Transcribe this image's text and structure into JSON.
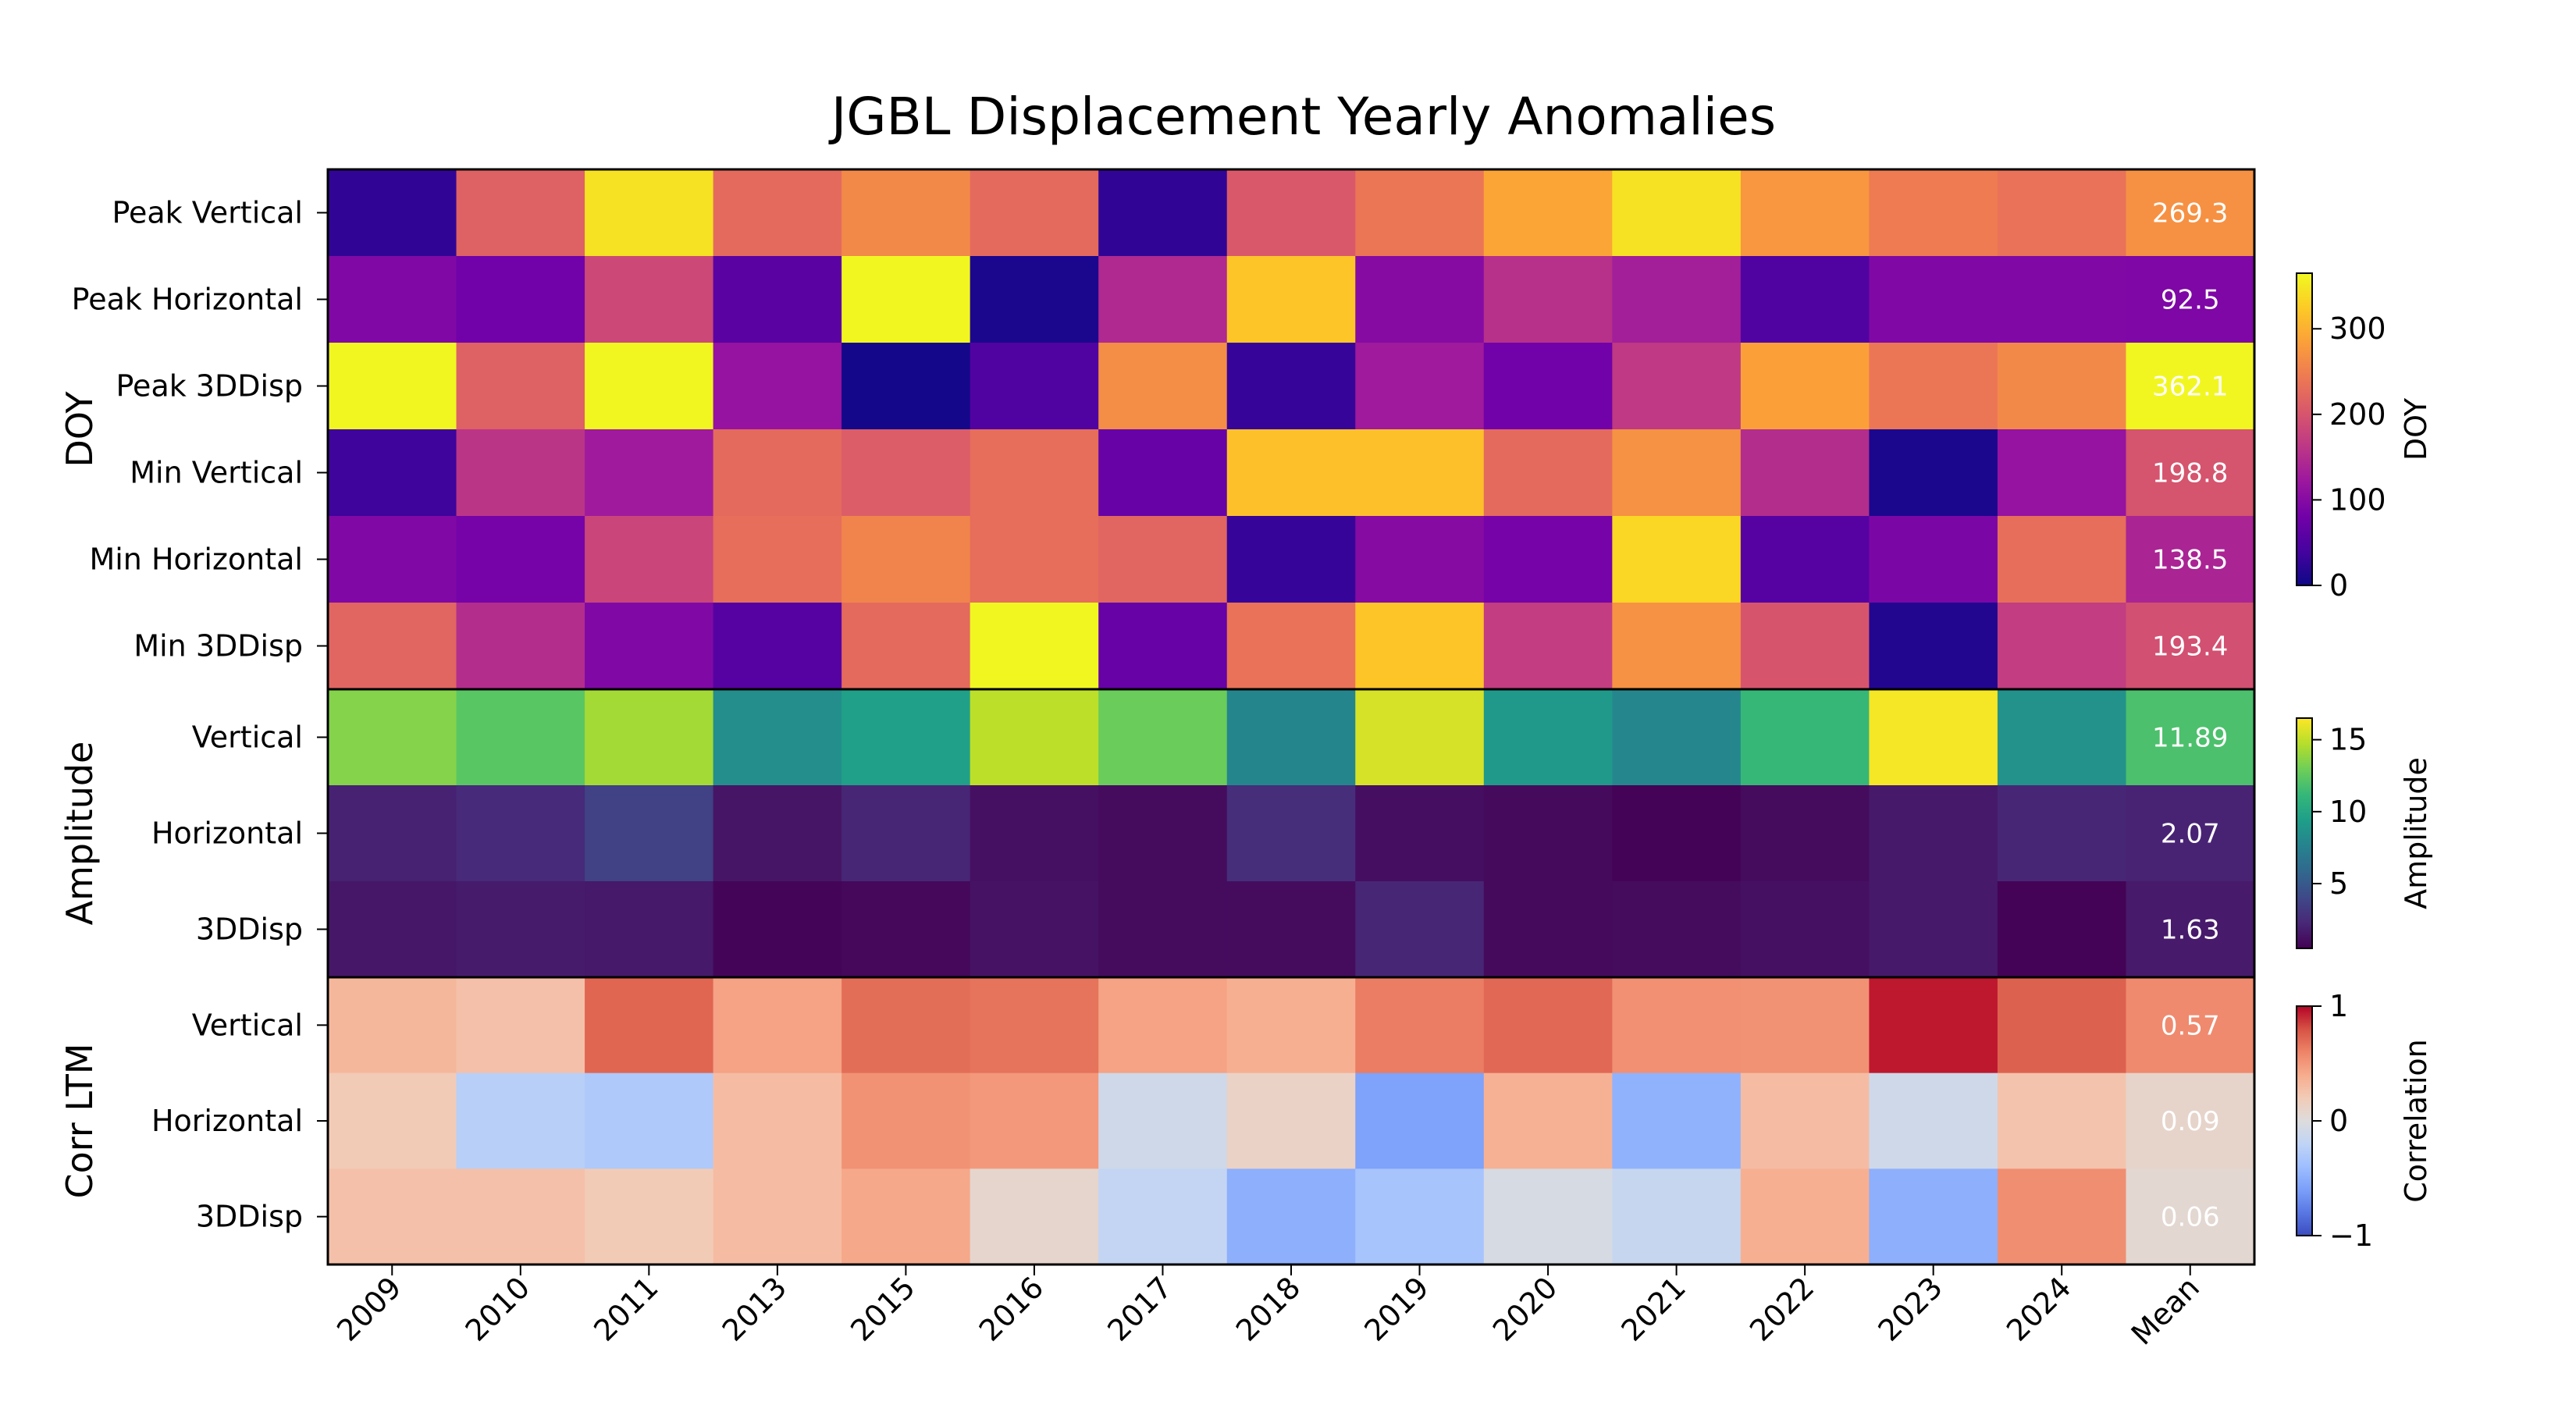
{
  "chart_data": {
    "type": "heatmap",
    "title": "JGBL Displacement Yearly Anomalies",
    "columns": [
      "2009",
      "2010",
      "2011",
      "2013",
      "2015",
      "2016",
      "2017",
      "2018",
      "2019",
      "2020",
      "2021",
      "2022",
      "2023",
      "2024",
      "Mean"
    ],
    "panels": [
      {
        "name": "DOY",
        "ylabel": "DOY",
        "cmap": "plasma",
        "vmin": 0,
        "vmax": 365,
        "colorbar": {
          "label": "DOY",
          "ticks": [
            0,
            100,
            200,
            300
          ]
        },
        "rows": [
          {
            "label": "Peak Vertical",
            "values": [
              25,
              215,
              345,
              225,
              260,
              225,
              25,
              205,
              240,
              290,
              345,
              275,
              245,
              235,
              269.3
            ]
          },
          {
            "label": "Peak Horizontal",
            "values": [
              95,
              80,
              185,
              60,
              362,
              10,
              145,
              320,
              100,
              155,
              130,
              50,
              95,
              95,
              92.5
            ]
          },
          {
            "label": "Peak 3DDisp",
            "values": [
              362,
              215,
              362,
              115,
              5,
              50,
              265,
              30,
              125,
              80,
              165,
              285,
              240,
              260,
              362.1
            ]
          },
          {
            "label": "Min Vertical",
            "values": [
              35,
              160,
              125,
              225,
              210,
              230,
              70,
              315,
              315,
              225,
              270,
              150,
              10,
              115,
              198.8
            ]
          },
          {
            "label": "Min Horizontal",
            "values": [
              95,
              85,
              180,
              230,
              255,
              230,
              220,
              30,
              100,
              85,
              335,
              55,
              90,
              230,
              138.5
            ]
          },
          {
            "label": "Min 3DDisp",
            "values": [
              220,
              150,
              95,
              55,
              225,
              362,
              70,
              235,
              320,
              170,
              270,
              200,
              15,
              170,
              193.4
            ]
          }
        ],
        "mean_labels": [
          "269.3",
          "92.5",
          "362.1",
          "198.8",
          "138.5",
          "193.4"
        ]
      },
      {
        "name": "Amplitude",
        "ylabel": "Amplitude",
        "cmap": "viridis",
        "vmin": 0.5,
        "vmax": 16.5,
        "colorbar": {
          "label": "Amplitude",
          "ticks": [
            5,
            10,
            15
          ]
        },
        "rows": [
          {
            "label": "Vertical",
            "values": [
              13.5,
              12.3,
              14.3,
              8.4,
              9.5,
              14.9,
              12.8,
              7.8,
              15.5,
              9.1,
              7.9,
              11.2,
              16.3,
              8.6,
              11.89
            ]
          },
          {
            "label": "Horizontal",
            "values": [
              2.0,
              2.4,
              3.6,
              1.4,
              2.2,
              1.2,
              1.0,
              2.6,
              1.1,
              0.9,
              0.6,
              1.0,
              1.6,
              2.2,
              2.07
            ]
          },
          {
            "label": "3DDisp",
            "values": [
              1.5,
              1.7,
              1.6,
              0.7,
              0.8,
              1.3,
              1.0,
              1.0,
              2.2,
              0.9,
              1.0,
              1.2,
              1.6,
              0.6,
              1.63
            ]
          }
        ],
        "mean_labels": [
          "11.89",
          "2.07",
          "1.63"
        ]
      },
      {
        "name": "Corr LTM",
        "ylabel": "Corr LTM",
        "cmap": "coolwarm",
        "vmin": -1,
        "vmax": 1,
        "colorbar": {
          "label": "Correlation",
          "ticks": [
            -1,
            0,
            1
          ]
        },
        "rows": [
          {
            "label": "Vertical",
            "values": [
              0.33,
              0.27,
              0.72,
              0.45,
              0.69,
              0.67,
              0.45,
              0.38,
              0.63,
              0.71,
              0.54,
              0.53,
              0.95,
              0.74,
              0.57
            ]
          },
          {
            "label": "Horizontal",
            "values": [
              0.2,
              -0.25,
              -0.3,
              0.3,
              0.53,
              0.5,
              -0.1,
              0.12,
              -0.58,
              0.37,
              -0.48,
              0.3,
              -0.1,
              0.25,
              0.09
            ]
          },
          {
            "label": "3DDisp",
            "values": [
              0.27,
              0.27,
              0.2,
              0.3,
              0.42,
              0.08,
              -0.18,
              -0.5,
              -0.35,
              -0.05,
              -0.15,
              0.38,
              -0.5,
              0.55,
              0.06
            ]
          }
        ],
        "mean_labels": [
          "0.57",
          "0.09",
          "0.06"
        ]
      }
    ],
    "colorbar_tick_labels": {
      "doy": [
        "0",
        "100",
        "200",
        "300"
      ],
      "amplitude": [
        "5",
        "10",
        "15"
      ],
      "correlation": [
        "−1",
        "0",
        "1"
      ]
    }
  }
}
